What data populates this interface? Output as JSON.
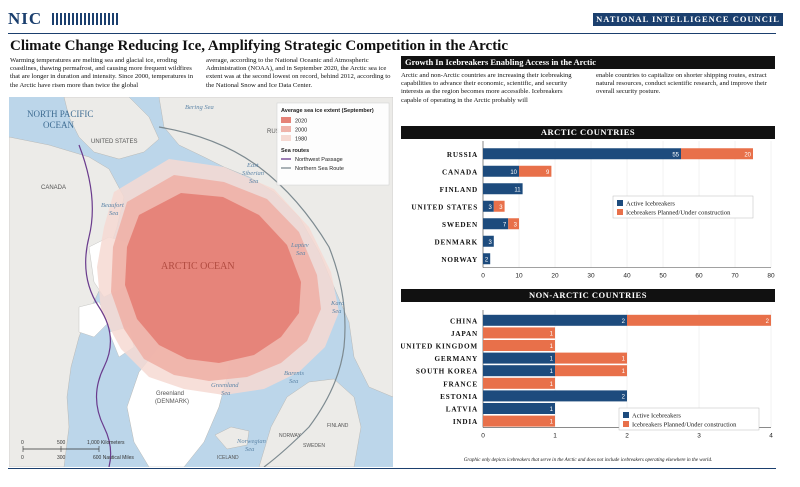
{
  "header": {
    "logo": "NIC",
    "council": "NATIONAL INTELLIGENCE COUNCIL",
    "title": "Climate Change Reducing Ice, Amplifying Strategic Competition in the Arctic"
  },
  "intro": {
    "col1": "Warming temperatures are melting sea and glacial ice, eroding coastlines, thawing permafrost, and causing more frequent wildfires that are longer in duration and intensity. Since 2000, temperatures in the Arctic have risen more than twice the global",
    "col2": "average, according to the National Oceanic and Atmospheric Administration (NOAA), and in September 2020, the Arctic sea ice extent was at the second lowest on record, behind 2012, according to the National Snow and Ice Data Center."
  },
  "map": {
    "legend_title": "Average sea ice extent (September)",
    "legend_items": [
      {
        "label": "2020",
        "color": "#e58277"
      },
      {
        "label": "2000",
        "color": "#efb3aa"
      },
      {
        "label": "1980",
        "color": "#f6d9d2"
      }
    ],
    "routes_title": "Sea routes",
    "routes": [
      {
        "label": "Northwest Passage",
        "color": "#6a3b8d"
      },
      {
        "label": "Northern Sea Route",
        "color": "#7d8a90"
      }
    ],
    "labels": {
      "north_pacific": "NORTH PACIFIC",
      "ocean": "OCEAN",
      "bering_sea": "Bering Sea",
      "russia": "RUSSIA",
      "united_states": "UNITED STATES",
      "canada": "CANADA",
      "beaufort": "Beaufort",
      "beaufort_sea": "Sea",
      "east_siberian": "East",
      "east_siberian2": "Siberian",
      "east_siberian3": "Sea",
      "laptev": "Laptev",
      "laptev_sea": "Sea",
      "kara": "Kara",
      "kara_sea": "Sea",
      "arctic_ocean": "ARCTIC OCEAN",
      "greenland": "Greenland",
      "denmark": "(DENMARK)",
      "greenland_sea": "Greenland",
      "greenland_sea2": "Sea",
      "barents": "Barents",
      "barents_sea": "Sea",
      "norwegian": "Norwegian",
      "norwegian_sea": "Sea",
      "iceland": "ICELAND",
      "norway": "NORWAY",
      "sweden": "SWEDEN",
      "finland": "FINLAND"
    },
    "scale": {
      "km_ticks": [
        "0",
        "500",
        "1,000 Kilometers"
      ],
      "nm_ticks": [
        "0",
        "300",
        "600 Nautical Miles"
      ]
    }
  },
  "icebreakers": {
    "title": "Growth In Icebreakers Enabling Access in the Arctic",
    "text1": "Arctic and non-Arctic countries are increasing their icebreaking capabilities to advance their economic, scientific, and security interests as the region becomes more accessible. Icebreakers capable of operating in the Arctic probably will",
    "text2": "enable countries to capitalize on shorter shipping routes, extract natural resources, conduct scientific research, and improve their overall security posture.",
    "footnote": "Graphic only depicts icebreakers that serve in the Arctic and does not include icebreakers operating elsewhere in the world."
  },
  "chart_data": [
    {
      "type": "bar",
      "title": "ARCTIC COUNTRIES",
      "orientation": "horizontal",
      "stacked": true,
      "categories": [
        "RUSSIA",
        "CANADA",
        "FINLAND",
        "UNITED STATES",
        "SWEDEN",
        "DENMARK",
        "NORWAY"
      ],
      "series": [
        {
          "name": "Active Icebreakers",
          "color": "#1d4b7d",
          "values": [
            55,
            10,
            11,
            3,
            7,
            3,
            2
          ]
        },
        {
          "name": "Icebreakers Planned/Under construction",
          "color": "#e8704a",
          "values": [
            20,
            9,
            0,
            3,
            3,
            0,
            0
          ]
        }
      ],
      "xlim": [
        0,
        80
      ],
      "xticks": [
        0,
        10,
        20,
        30,
        40,
        50,
        60,
        70,
        80
      ],
      "legend": "right"
    },
    {
      "type": "bar",
      "title": "NON-ARCTIC COUNTRIES",
      "orientation": "horizontal",
      "stacked": true,
      "categories": [
        "CHINA",
        "JAPAN",
        "UNITED KINGDOM",
        "GERMANY",
        "SOUTH KOREA",
        "FRANCE",
        "ESTONIA",
        "LATVIA",
        "INDIA"
      ],
      "series": [
        {
          "name": "Active Icebreakers",
          "color": "#1d4b7d",
          "values": [
            2,
            0,
            0,
            1,
            1,
            0,
            2,
            1,
            0
          ]
        },
        {
          "name": "Icebreakers Planned/Under construction",
          "color": "#e8704a",
          "values": [
            2,
            1,
            1,
            1,
            1,
            1,
            0,
            0,
            1
          ]
        }
      ],
      "xlim": [
        0,
        4
      ],
      "xticks": [
        0,
        1,
        2,
        3,
        4
      ],
      "legend": "bottom-right"
    }
  ]
}
